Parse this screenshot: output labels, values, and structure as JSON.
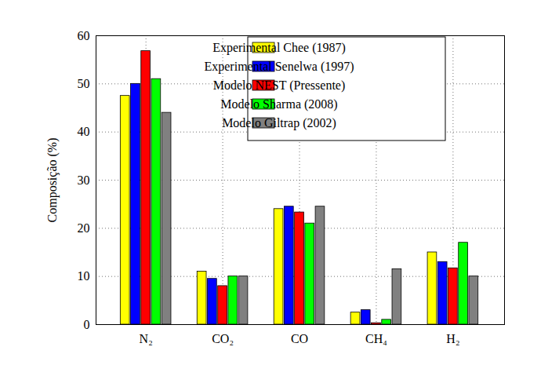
{
  "chart_data": {
    "type": "bar",
    "y_label": "Composição (%)",
    "categories": [
      "N₂",
      "CO₂",
      "CO",
      "CH₄",
      "H₂"
    ],
    "series": [
      {
        "name": "Experimental Chee (1987)",
        "color": "#ffff00",
        "values": [
          47.5,
          11,
          24,
          2.5,
          15
        ]
      },
      {
        "name": "Experimental Senelwa (1997)",
        "color": "#0000ff",
        "values": [
          50,
          9.5,
          24.5,
          3,
          13
        ]
      },
      {
        "name": "Modelo NEST (Pressente)",
        "color": "#ff0000",
        "values": [
          56.8,
          8,
          23.3,
          0.3,
          11.7
        ]
      },
      {
        "name": "Modelo Sharma (2008)",
        "color": "#00ff00",
        "values": [
          51,
          10,
          21,
          1,
          17
        ]
      },
      {
        "name": "Modelo Giltrap (2002)",
        "color": "#808080",
        "values": [
          44,
          10,
          24.5,
          11.5,
          10
        ]
      }
    ],
    "ylim": [
      0,
      60
    ],
    "yticks": [
      0,
      10,
      20,
      30,
      40,
      50,
      60
    ],
    "grid": true,
    "legend": "upper right"
  }
}
